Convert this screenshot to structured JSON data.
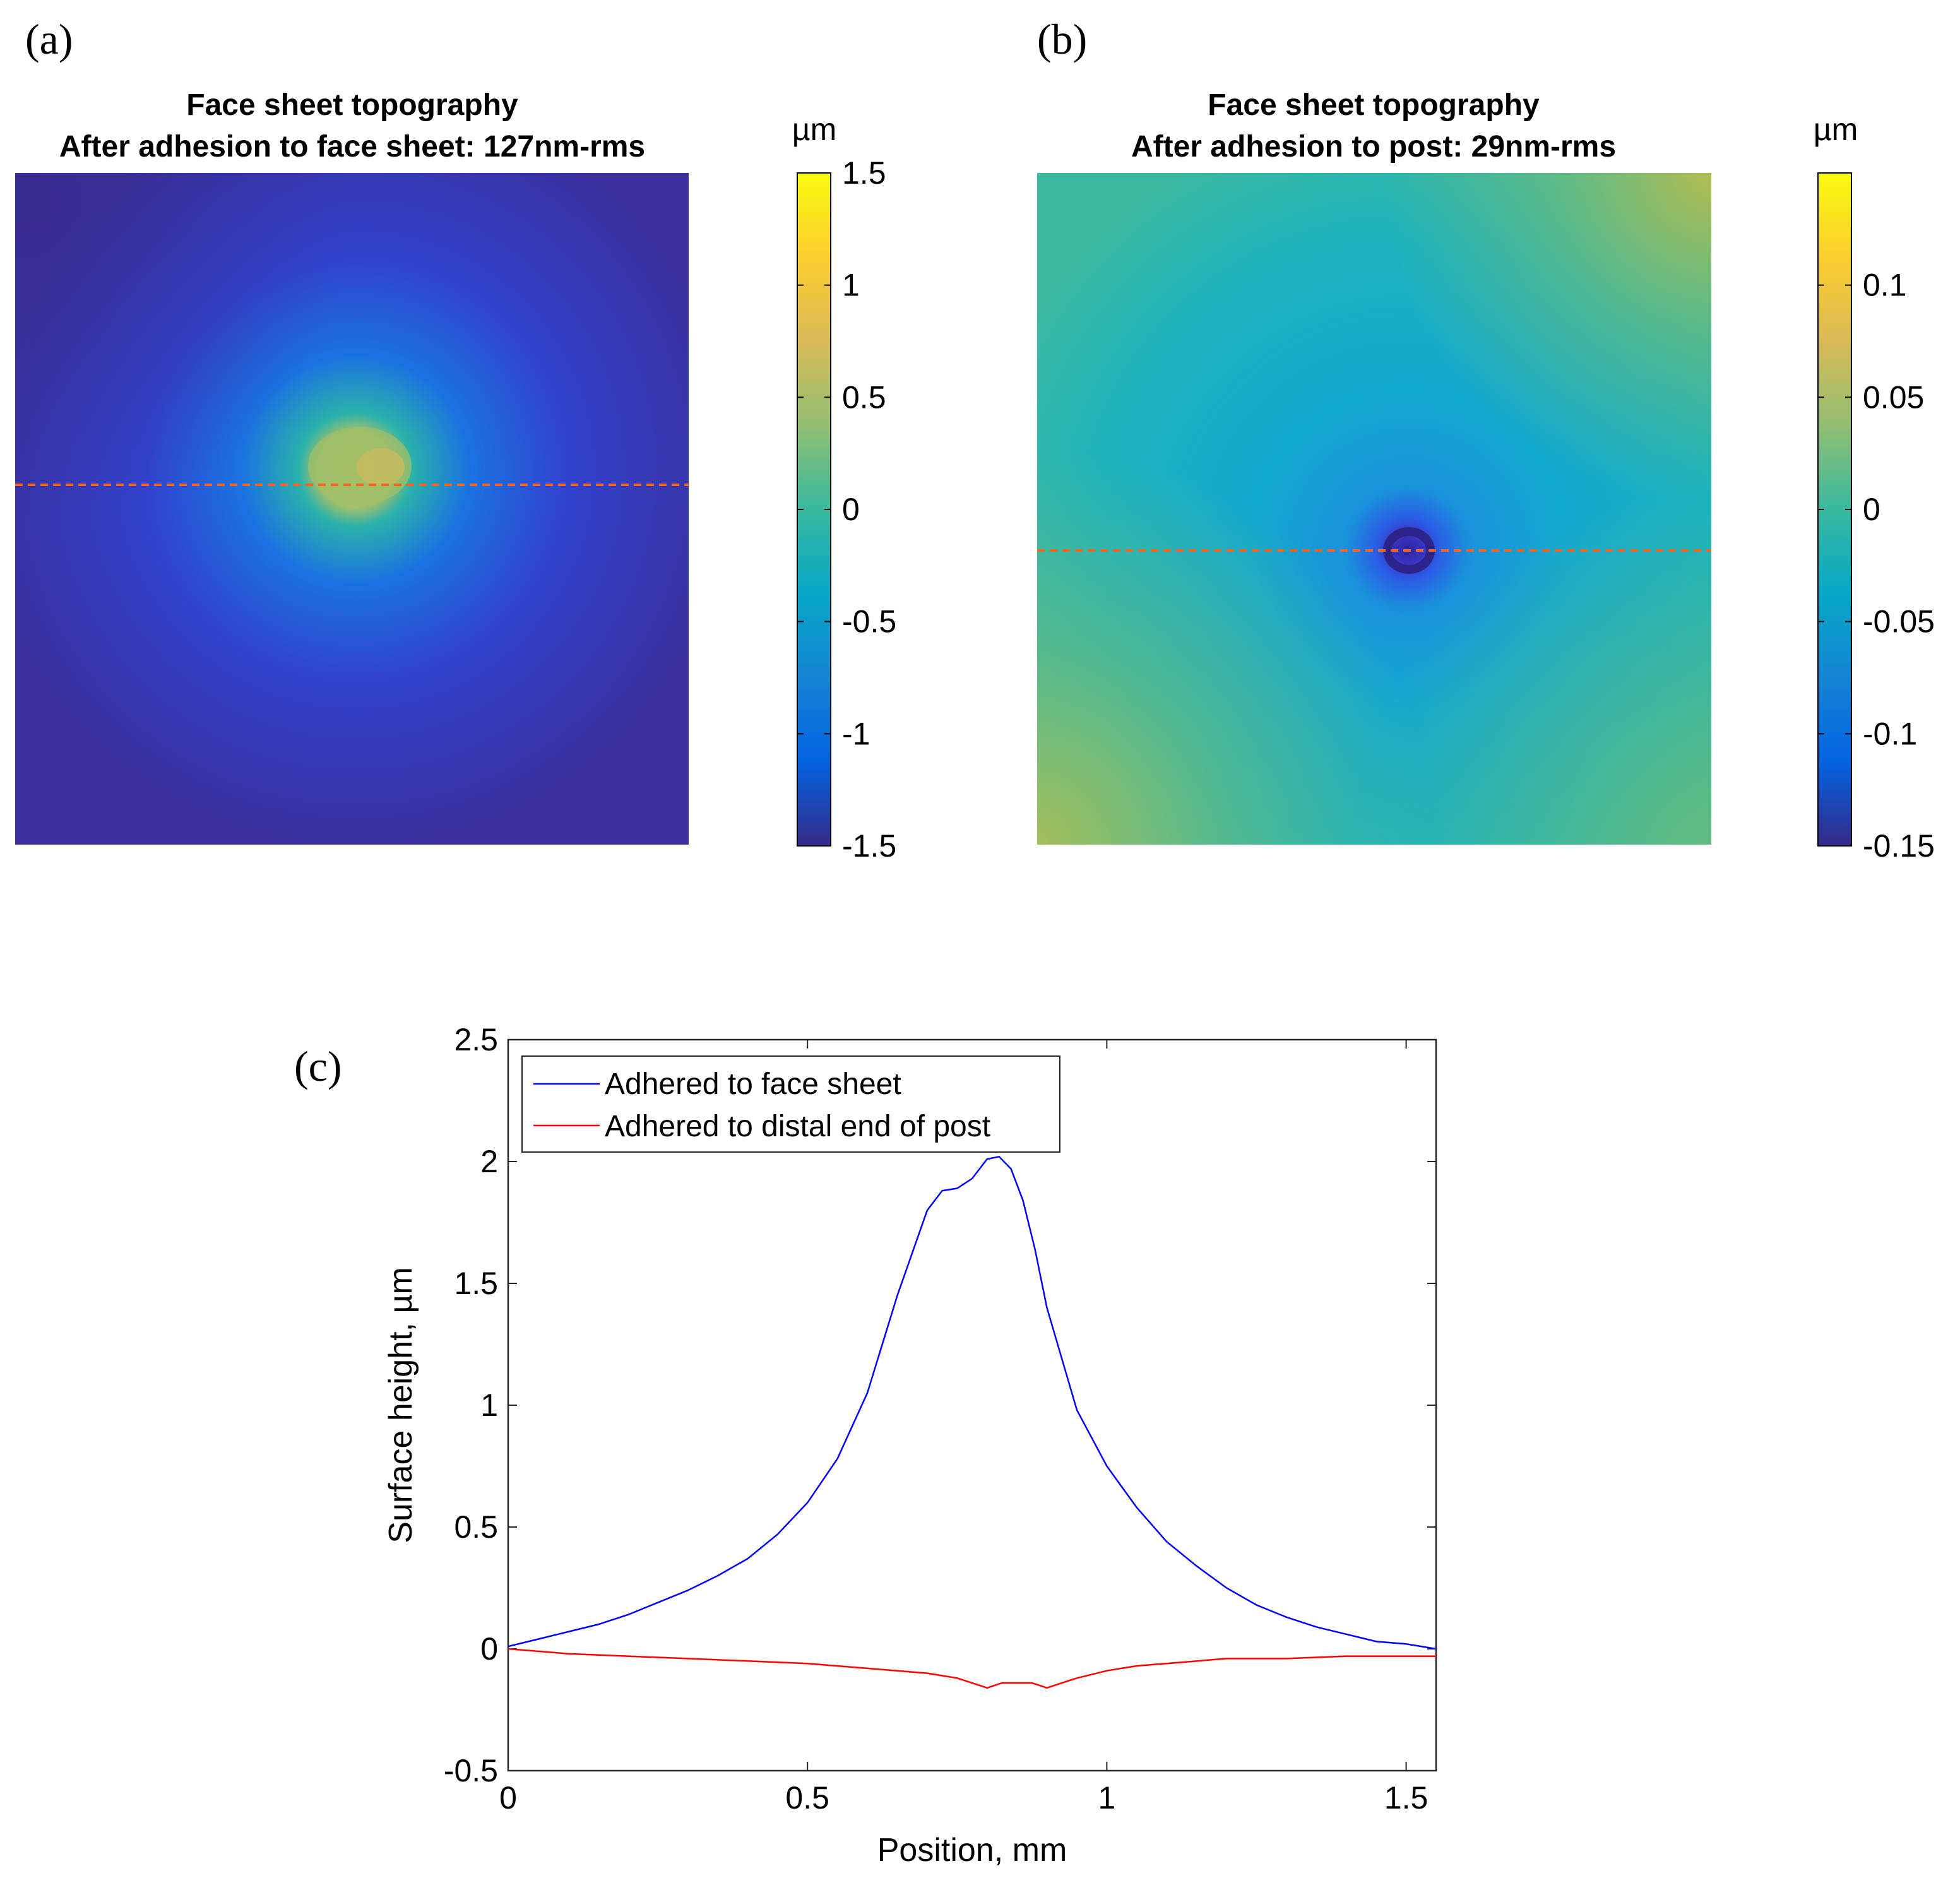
{
  "colors": {
    "parula": [
      "#352a87",
      "#0363e1",
      "#1485d4",
      "#06a7c6",
      "#38b99e",
      "#92bf73",
      "#d9ba56",
      "#fcce2e",
      "#f9fb0e"
    ],
    "line_a": "#0000ff",
    "line_b": "#ff0000",
    "dash": "#f26522"
  },
  "chart_data": [
    {
      "id": "a",
      "panel_label": "(a)",
      "type": "heatmap",
      "title": [
        "Face sheet topography",
        "After adhesion to face sheet: 127nm-rms"
      ],
      "colorbar": {
        "unit": "µm",
        "range": [
          -1.5,
          1.5
        ],
        "ticks": [
          1.5,
          1,
          0.5,
          0,
          -0.5,
          -1,
          -1.5
        ],
        "tick_labels": [
          "1.5",
          "1",
          "0.5",
          "0",
          "-0.5",
          "-1",
          "-1.5"
        ]
      },
      "features": {
        "center_height": 1.0,
        "background_height": -1.4,
        "profile_line_fraction": 0.465
      }
    },
    {
      "id": "b",
      "panel_label": "(b)",
      "type": "heatmap",
      "title": [
        "Face sheet topography",
        "After adhesion to post: 29nm-rms"
      ],
      "colorbar": {
        "unit": "µm",
        "range": [
          -0.15,
          0.15
        ],
        "ticks": [
          0.1,
          0.05,
          0,
          -0.05,
          -0.1,
          -0.15
        ],
        "tick_labels": [
          "0.1",
          "0.05",
          "0",
          "-0.05",
          "-0.1",
          "-0.15"
        ]
      },
      "features": {
        "center_height": -0.14,
        "background_height": 0.03,
        "profile_line_fraction": 0.56
      }
    },
    {
      "id": "c",
      "panel_label": "(c)",
      "type": "line",
      "xlabel": "Position, mm",
      "ylabel": "Surface height, µm",
      "xlim": [
        0,
        1.55
      ],
      "ylim": [
        -0.5,
        2.5
      ],
      "xticks": [
        0,
        0.5,
        1,
        1.5
      ],
      "xtick_labels": [
        "0",
        "0.5",
        "1",
        "1.5"
      ],
      "yticks": [
        -0.5,
        0,
        0.5,
        1,
        1.5,
        2,
        2.5
      ],
      "ytick_labels": [
        "-0.5",
        "0",
        "0.5",
        "1",
        "1.5",
        "2",
        "2.5"
      ],
      "legend": "top-left",
      "series": [
        {
          "name": "Adhered to face sheet",
          "color": "#0000ff",
          "x": [
            0,
            0.05,
            0.1,
            0.15,
            0.2,
            0.25,
            0.3,
            0.35,
            0.4,
            0.45,
            0.5,
            0.55,
            0.6,
            0.65,
            0.7,
            0.725,
            0.75,
            0.775,
            0.8,
            0.82,
            0.84,
            0.86,
            0.88,
            0.9,
            0.95,
            1.0,
            1.05,
            1.1,
            1.15,
            1.2,
            1.25,
            1.3,
            1.35,
            1.4,
            1.45,
            1.5,
            1.55
          ],
          "y": [
            0.01,
            0.04,
            0.07,
            0.1,
            0.14,
            0.19,
            0.24,
            0.3,
            0.37,
            0.47,
            0.6,
            0.78,
            1.05,
            1.45,
            1.8,
            1.88,
            1.89,
            1.93,
            2.01,
            2.02,
            1.97,
            1.84,
            1.64,
            1.4,
            0.98,
            0.75,
            0.58,
            0.44,
            0.34,
            0.25,
            0.18,
            0.13,
            0.09,
            0.06,
            0.03,
            0.02,
            0.0
          ]
        },
        {
          "name": "Adhered to distal end of post",
          "color": "#ff0000",
          "x": [
            0,
            0.1,
            0.2,
            0.3,
            0.4,
            0.5,
            0.6,
            0.7,
            0.75,
            0.8,
            0.825,
            0.85,
            0.875,
            0.9,
            0.95,
            1.0,
            1.05,
            1.1,
            1.2,
            1.3,
            1.4,
            1.5,
            1.55
          ],
          "y": [
            0.0,
            -0.02,
            -0.03,
            -0.04,
            -0.05,
            -0.06,
            -0.08,
            -0.1,
            -0.12,
            -0.16,
            -0.14,
            -0.14,
            -0.14,
            -0.16,
            -0.12,
            -0.09,
            -0.07,
            -0.06,
            -0.04,
            -0.04,
            -0.03,
            -0.03,
            -0.03
          ]
        }
      ]
    }
  ]
}
